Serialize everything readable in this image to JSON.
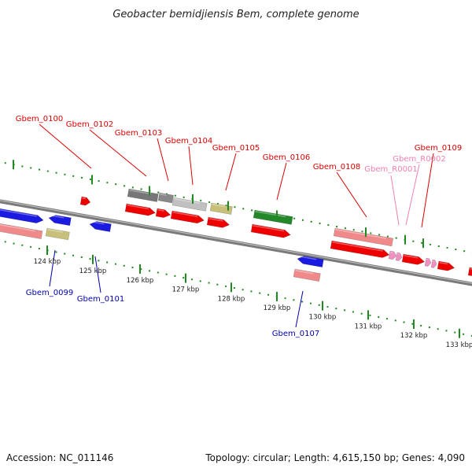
{
  "title": "Geobacter bemidjiensis Bem, complete genome",
  "footer": {
    "accession": "Accession: NC_011146",
    "summary": "Topology: circular; Length: 4,615,150 bp; Genes: 4,090"
  },
  "colors": {
    "backbone": "#8a8a8a",
    "tick": "#1f8a1f",
    "upper_label": "#dd0000",
    "lower_label": "#0000aa",
    "rna_label": "#f080b0"
  },
  "scale_ticks": [
    {
      "label": "124 kbp"
    },
    {
      "label": "125 kbp"
    },
    {
      "label": "126 kbp"
    },
    {
      "label": "127 kbp"
    },
    {
      "label": "128 kbp"
    },
    {
      "label": "129 kbp"
    },
    {
      "label": "130 kbp"
    },
    {
      "label": "131 kbp"
    },
    {
      "label": "132 kbp"
    },
    {
      "label": "133 kbp"
    }
  ],
  "labels": [
    {
      "text": "Gbem_0100",
      "kind": "upper"
    },
    {
      "text": "Gbem_0102",
      "kind": "upper"
    },
    {
      "text": "Gbem_0103",
      "kind": "upper"
    },
    {
      "text": "Gbem_0104",
      "kind": "upper"
    },
    {
      "text": "Gbem_0105",
      "kind": "upper"
    },
    {
      "text": "Gbem_0106",
      "kind": "upper"
    },
    {
      "text": "Gbem_0108",
      "kind": "upper"
    },
    {
      "text": "Gbem_0109",
      "kind": "upper"
    },
    {
      "text": "Gbem_R0001",
      "kind": "rna"
    },
    {
      "text": "Gbem_R0002",
      "kind": "rna"
    },
    {
      "text": "Gbem_0099",
      "kind": "lower"
    },
    {
      "text": "Gbem_0101",
      "kind": "lower"
    },
    {
      "text": "Gbem_0107",
      "kind": "lower"
    }
  ]
}
